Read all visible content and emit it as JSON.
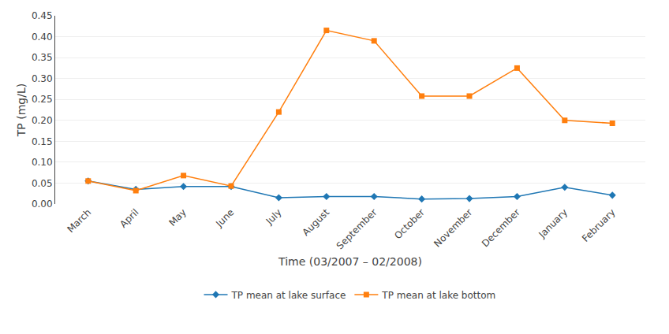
{
  "chart_data": {
    "type": "line",
    "categories": [
      "March",
      "April",
      "May",
      "June",
      "July",
      "August",
      "September",
      "October",
      "November",
      "December",
      "January",
      "February"
    ],
    "series": [
      {
        "name": "TP mean at lake surface",
        "marker": "diamond",
        "line_style": "solid",
        "values": [
          0.055,
          0.035,
          0.042,
          0.042,
          0.015,
          0.018,
          0.018,
          0.012,
          0.013,
          0.018,
          0.04,
          0.021
        ]
      },
      {
        "name": "TP mean at lake bottom",
        "marker": "square",
        "line_style": "solid",
        "values": [
          0.055,
          0.032,
          0.068,
          0.043,
          0.22,
          0.415,
          0.39,
          0.258,
          0.258,
          0.325,
          0.2,
          0.193
        ]
      }
    ],
    "xlabel": "Time (03/2007 – 02/2008)",
    "ylabel": "TP (mg/L)",
    "ylim": [
      0,
      0.45
    ],
    "yticks": [
      {
        "value": 0,
        "label": "0.00"
      },
      0.05,
      {
        "value": 0.1,
        "label": "0.10"
      },
      0.15,
      {
        "value": 0.2,
        "label": "0.20"
      },
      0.25,
      {
        "value": 0.3,
        "label": "0.30"
      },
      0.35,
      {
        "value": 0.4,
        "label": "0.40"
      },
      0.45
    ],
    "grid": true,
    "legend": "bottom"
  }
}
